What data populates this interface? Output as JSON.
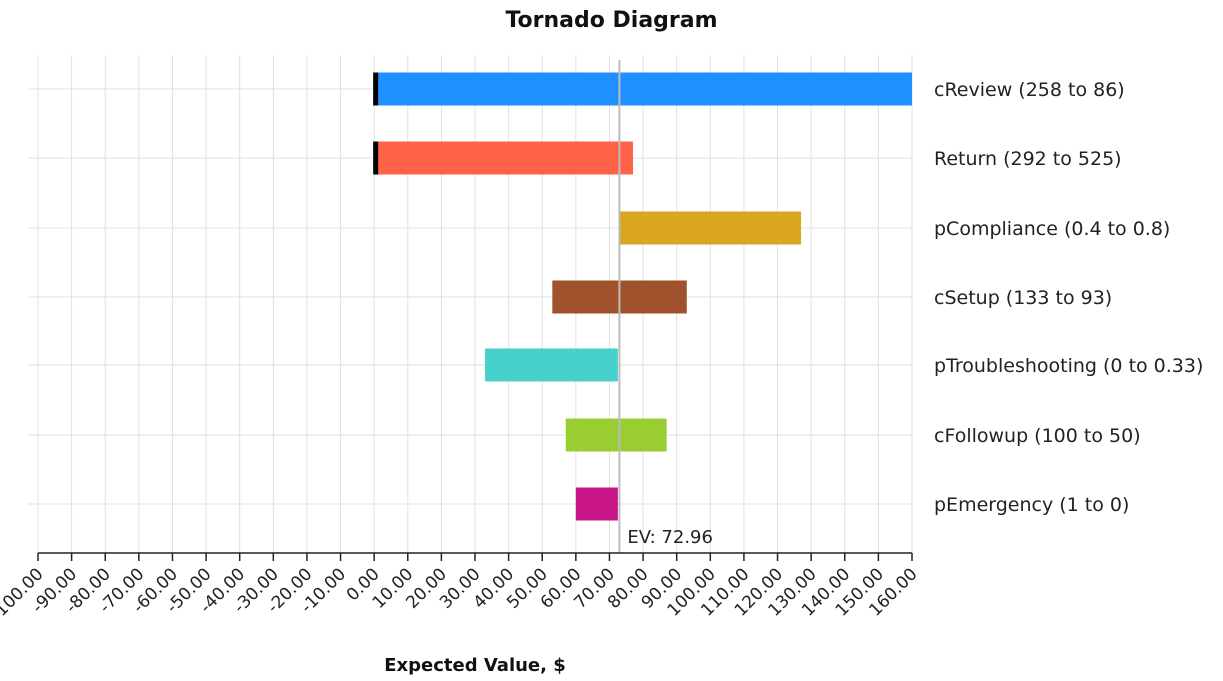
{
  "chart_data": {
    "type": "bar",
    "orientation": "horizontal",
    "title": "Tornado Diagram",
    "xlabel": "Expected Value, $",
    "ylabel": "",
    "xlim": [
      -100,
      160
    ],
    "x_ticks": [
      "-100.00",
      "-90.00",
      "-80.00",
      "-70.00",
      "-60.00",
      "-50.00",
      "-40.00",
      "-30.00",
      "-20.00",
      "-10.00",
      "0.00",
      "10.00",
      "20.00",
      "30.00",
      "40.00",
      "50.00",
      "60.00",
      "70.00",
      "80.00",
      "90.00",
      "100.00",
      "110.00",
      "120.00",
      "130.00",
      "140.00",
      "150.00",
      "160.00"
    ],
    "grid": true,
    "ev": 72.96,
    "ev_label": "EV: 72.96",
    "bars": [
      {
        "label": "cReview (258 to 86)",
        "low": 0,
        "high": 160,
        "color": "#1E90FF",
        "clipped_at_zero": true
      },
      {
        "label": "Return (292 to 525)",
        "low": 0,
        "high": 77,
        "color": "#FF6347",
        "clipped_at_zero": true
      },
      {
        "label": "pCompliance (0.4 to 0.8)",
        "low": 72.96,
        "high": 127,
        "color": "#DAA520",
        "clipped_at_zero": false
      },
      {
        "label": "cSetup (133 to 93)",
        "low": 53,
        "high": 93,
        "color": "#A0522D",
        "clipped_at_zero": false
      },
      {
        "label": "pTroubleshooting (0 to 0.33)",
        "low": 33,
        "high": 72.5,
        "color": "#48D1CC",
        "clipped_at_zero": false
      },
      {
        "label": "cFollowup (100 to 50)",
        "low": 57,
        "high": 87,
        "color": "#9ACD32",
        "clipped_at_zero": false
      },
      {
        "label": "pEmergency (1 to 0)",
        "low": 60,
        "high": 72.5,
        "color": "#C71585",
        "clipped_at_zero": false
      }
    ]
  }
}
